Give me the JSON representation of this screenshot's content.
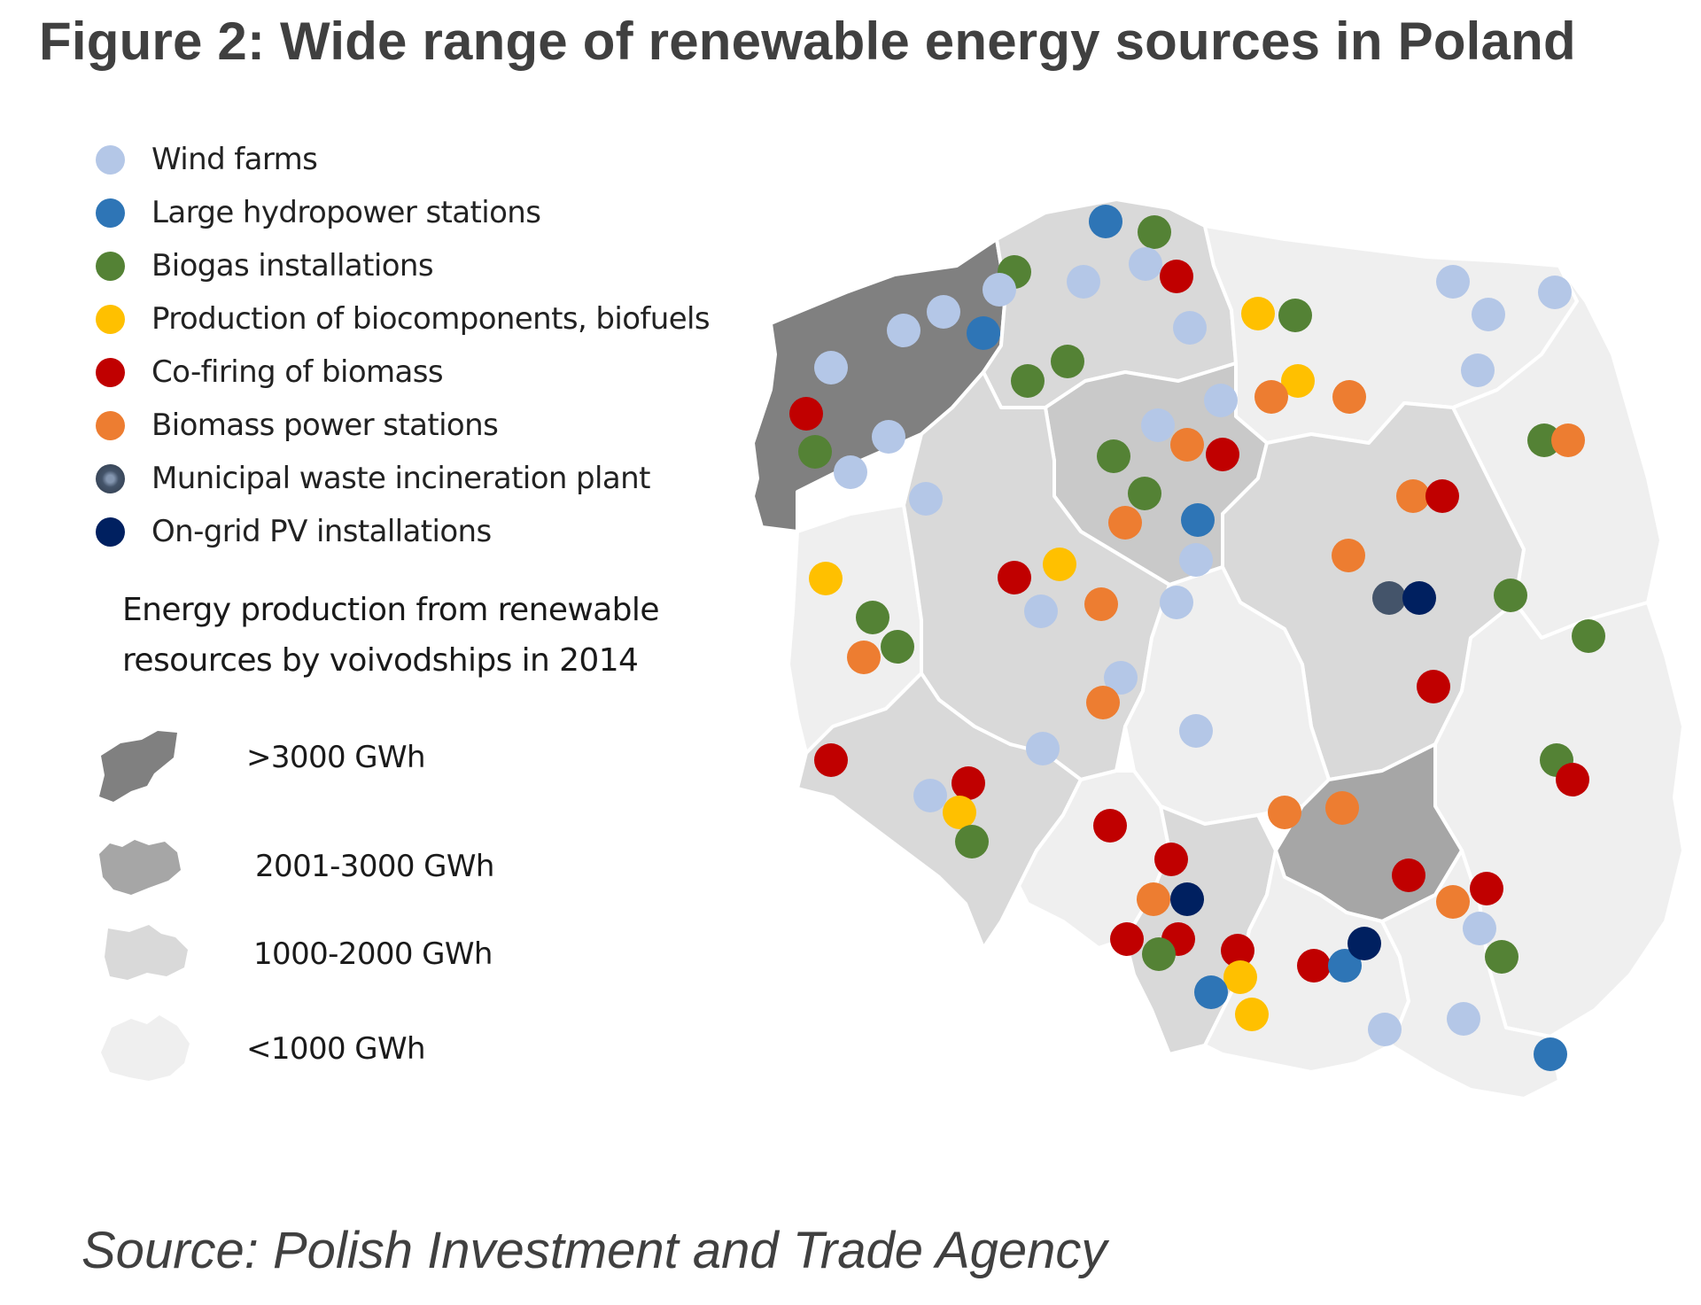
{
  "title": "Figure 2: Wide range of renewable energy sources in Poland",
  "legend": [
    {
      "key": "wind",
      "label": "Wind farms",
      "color": "#b4c7e7"
    },
    {
      "key": "hydro",
      "label": "Large hydropower stations",
      "color": "#2e75b6"
    },
    {
      "key": "biogas",
      "label": "Biogas installations",
      "color": "#548235"
    },
    {
      "key": "biofuel",
      "label": "Production of biocomponents, biofuels",
      "color": "#ffc000"
    },
    {
      "key": "cofiring",
      "label": "Co-firing of biomass",
      "color": "#c00000"
    },
    {
      "key": "biomass",
      "label": "Biomass power stations",
      "color": "#ed7d31"
    },
    {
      "key": "waste",
      "label": "Municipal waste incineration plant",
      "color": "#44546a"
    },
    {
      "key": "pv",
      "label": "On-grid PV installations",
      "color": "#002060"
    }
  ],
  "scale": {
    "heading": "Energy production from renewable resources by voivodships in 2014",
    "classes": [
      {
        "label": ">3000 GWh",
        "color": "#808080"
      },
      {
        "label": "2001-3000 GWh",
        "color": "#a6a6a6"
      },
      {
        "label": "1000-2000 GWh",
        "color": "#d9d9d9"
      },
      {
        "label": "<1000 GWh",
        "color": "#efefef"
      }
    ]
  },
  "source": "Source: Polish Investment and Trade Agency"
}
